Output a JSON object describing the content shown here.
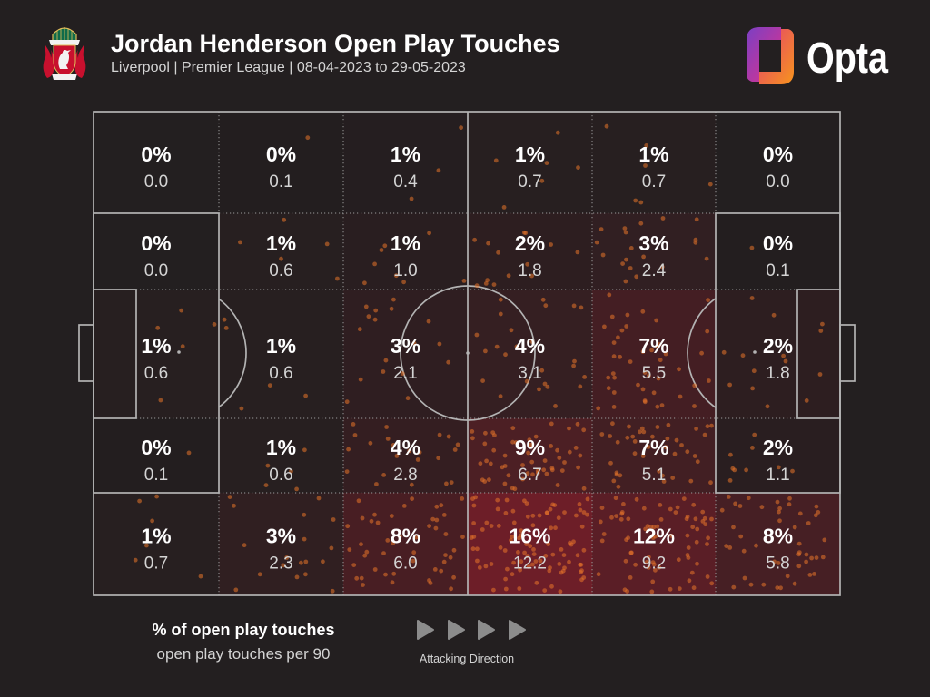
{
  "chart_data": {
    "type": "heatmap",
    "title": "Jordan Henderson Open Play Touches",
    "subtitle": "Liverpool | Premier League | 08-04-2023 to 29-05-2023",
    "legend": {
      "percent_label": "% of open play touches",
      "per90_label": "open play touches per 90"
    },
    "legend_position": "bottom-left",
    "direction_label": "Attacking Direction",
    "cells": [
      [
        {
          "percent": "0%",
          "per90": "0.0"
        },
        {
          "percent": "0%",
          "per90": "0.1"
        },
        {
          "percent": "1%",
          "per90": "0.4"
        },
        {
          "percent": "1%",
          "per90": "0.7"
        },
        {
          "percent": "1%",
          "per90": "0.7"
        },
        {
          "percent": "0%",
          "per90": "0.0"
        }
      ],
      [
        {
          "percent": "0%",
          "per90": "0.0"
        },
        {
          "percent": "1%",
          "per90": "0.6"
        },
        {
          "percent": "1%",
          "per90": "1.0"
        },
        {
          "percent": "2%",
          "per90": "1.8"
        },
        {
          "percent": "3%",
          "per90": "2.4"
        },
        {
          "percent": "0%",
          "per90": "0.1"
        }
      ],
      [
        {
          "percent": "1%",
          "per90": "0.6"
        },
        {
          "percent": "1%",
          "per90": "0.6"
        },
        {
          "percent": "3%",
          "per90": "2.1"
        },
        {
          "percent": "4%",
          "per90": "3.1"
        },
        {
          "percent": "7%",
          "per90": "5.5"
        },
        {
          "percent": "2%",
          "per90": "1.8"
        }
      ],
      [
        {
          "percent": "0%",
          "per90": "0.1"
        },
        {
          "percent": "1%",
          "per90": "0.6"
        },
        {
          "percent": "4%",
          "per90": "2.8"
        },
        {
          "percent": "9%",
          "per90": "6.7"
        },
        {
          "percent": "7%",
          "per90": "5.1"
        },
        {
          "percent": "2%",
          "per90": "1.1"
        }
      ],
      [
        {
          "percent": "1%",
          "per90": "0.7"
        },
        {
          "percent": "3%",
          "per90": "2.3"
        },
        {
          "percent": "8%",
          "per90": "6.0"
        },
        {
          "percent": "16%",
          "per90": "12.2"
        },
        {
          "percent": "12%",
          "per90": "9.2"
        },
        {
          "percent": "8%",
          "per90": "5.8"
        }
      ]
    ]
  },
  "brand": {
    "name": "Opta"
  },
  "icons": {
    "club_crest": "liverpool-crest-icon",
    "brand_logo": "opta-logo-icon",
    "direction_arrow": "play-arrow-right-icon"
  },
  "colors": {
    "background": "#231f20",
    "heat": "#c41e32",
    "touch_dot": "#e8742a",
    "pitch_line": "#b3b3b3",
    "grid_line": "#9a9a9a",
    "text": "#ffffff",
    "muted_text": "#d4d4d4",
    "arrow": "#8c8c8c"
  }
}
